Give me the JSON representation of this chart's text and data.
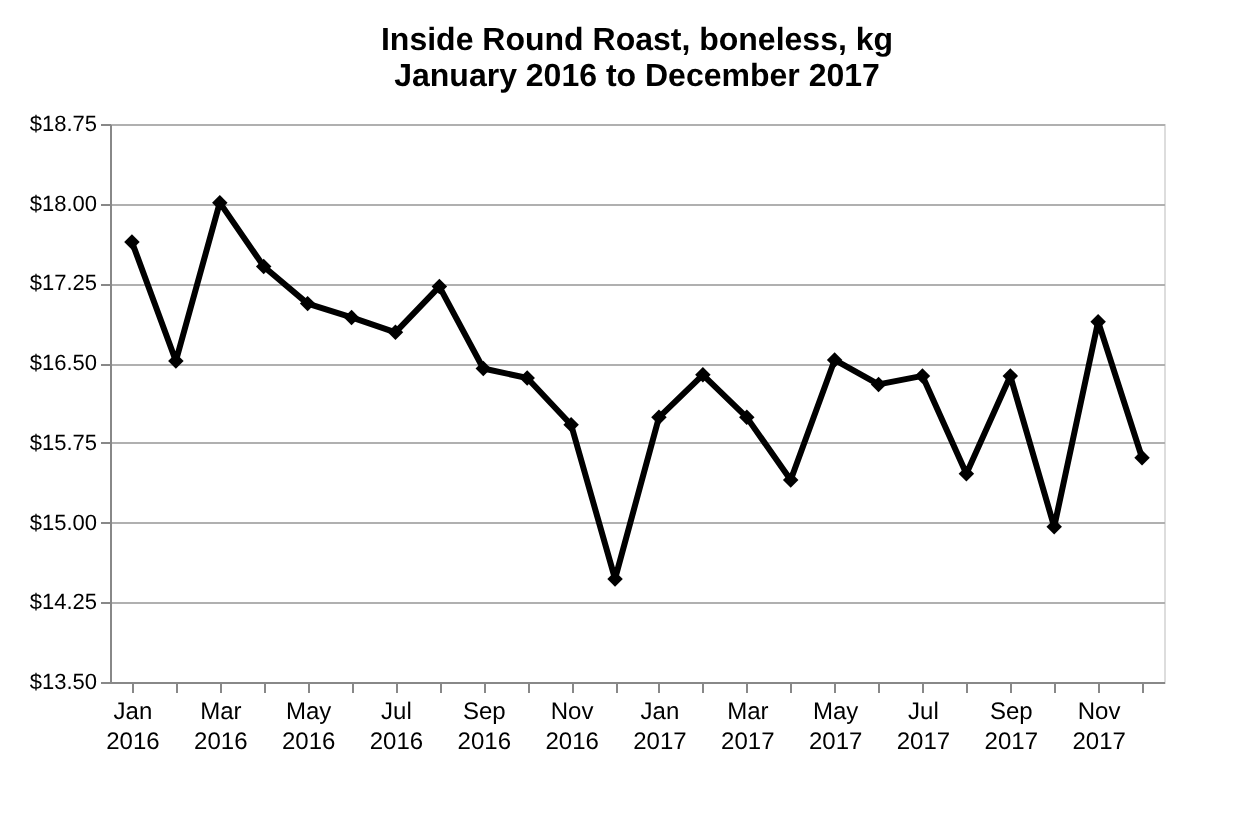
{
  "chart_data": {
    "type": "line",
    "title": "Inside Round Roast, boneless, kg",
    "subtitle": "January 2016 to December 2017",
    "categories": [
      "Jan 2016",
      null,
      "Mar 2016",
      null,
      "May 2016",
      null,
      "Jul 2016",
      null,
      "Sep 2016",
      null,
      "Nov 2016",
      null,
      "Jan 2017",
      null,
      "Mar 2017",
      null,
      "May 2017",
      null,
      "Jul 2017",
      null,
      "Sep 2017",
      null,
      "Nov 2017",
      null
    ],
    "series": [
      {
        "color": "#000000",
        "values": [
          17.64,
          16.52,
          18.01,
          17.41,
          17.06,
          16.93,
          16.79,
          17.22,
          16.45,
          16.36,
          15.92,
          14.47,
          15.99,
          16.39,
          15.99,
          15.4,
          16.53,
          16.3,
          16.38,
          15.46,
          16.38,
          14.96,
          16.89,
          15.61
        ]
      }
    ],
    "ylim": [
      13.5,
      18.75
    ],
    "yticks": [
      {
        "value": 13.5,
        "label": "$13.50"
      },
      {
        "value": 14.25,
        "label": "$14.25"
      },
      {
        "value": 15.0,
        "label": "$15.00"
      },
      {
        "value": 15.75,
        "label": "$15.75"
      },
      {
        "value": 16.5,
        "label": "$16.50"
      },
      {
        "value": 17.25,
        "label": "$17.25"
      },
      {
        "value": 18.0,
        "label": "$18.00"
      },
      {
        "value": 18.75,
        "label": "$18.75"
      }
    ],
    "grid": "y",
    "marker": "diamond",
    "line_style": "solid"
  }
}
